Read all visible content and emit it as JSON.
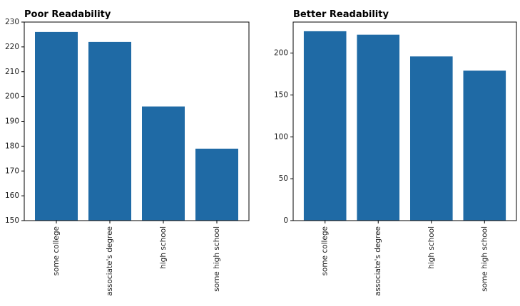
{
  "chart_data": [
    {
      "type": "bar",
      "title": "Poor Readability",
      "xlabel": "",
      "ylabel": "",
      "categories": [
        "some college",
        "associate's degree",
        "high school",
        "some high school"
      ],
      "values": [
        226,
        222,
        196,
        179
      ],
      "ylim": [
        150,
        230
      ],
      "yticks": [
        150,
        160,
        170,
        180,
        190,
        200,
        210,
        220,
        230
      ],
      "grid": false,
      "bar_color": "#1f6aa5"
    },
    {
      "type": "bar",
      "title": "Better Readability",
      "xlabel": "",
      "ylabel": "",
      "categories": [
        "some college",
        "associate's degree",
        "high school",
        "some high school"
      ],
      "values": [
        226,
        222,
        196,
        179
      ],
      "ylim": [
        0,
        237
      ],
      "yticks": [
        0,
        50,
        100,
        150,
        200
      ],
      "grid": false,
      "bar_color": "#1f6aa5"
    }
  ]
}
